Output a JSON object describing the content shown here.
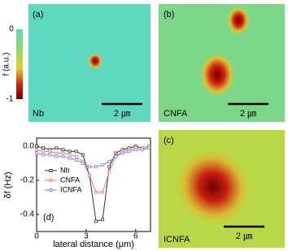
{
  "colorbar": {
    "label": "f (a.u.)",
    "top": "0",
    "bottom": "-1"
  },
  "panels": [
    {
      "tag": "(a)",
      "sample": "Nb",
      "scale": "2 ㎛"
    },
    {
      "tag": "(b)",
      "sample": "CNFA",
      "scale": "2 ㎛"
    },
    {
      "tag": "(c)",
      "sample": "ICNFA",
      "scale": "2 ㎛"
    }
  ],
  "chart_data": {
    "type": "line",
    "panel_tag": "(d)",
    "x_label": "lateral distance (μm)",
    "y_label": "δf (Hz)",
    "x": [
      0,
      0.4,
      0.8,
      1.2,
      1.6,
      2.0,
      2.4,
      2.8,
      3.2,
      3.6,
      4.0,
      4.4,
      4.8,
      5.2,
      5.6,
      6.0,
      6.4,
      6.8
    ],
    "series": [
      {
        "name": "Nb",
        "color": "#333333",
        "values": [
          0.0,
          -0.01,
          -0.02,
          -0.01,
          -0.02,
          -0.03,
          -0.03,
          -0.05,
          -0.17,
          -0.44,
          -0.43,
          -0.12,
          -0.04,
          -0.02,
          -0.01,
          0.0,
          -0.01,
          0.0
        ]
      },
      {
        "name": "CNFA",
        "color": "#f08080",
        "values": [
          -0.02,
          -0.03,
          -0.03,
          -0.04,
          -0.04,
          -0.05,
          -0.06,
          -0.09,
          -0.17,
          -0.27,
          -0.27,
          -0.15,
          -0.06,
          -0.03,
          -0.02,
          -0.01,
          -0.01,
          0.0
        ]
      },
      {
        "name": "ICNFA",
        "color": "#8080f0",
        "values": [
          -0.04,
          -0.05,
          -0.05,
          -0.06,
          -0.06,
          -0.07,
          -0.08,
          -0.1,
          -0.12,
          -0.12,
          -0.11,
          -0.09,
          -0.06,
          -0.04,
          -0.03,
          -0.02,
          -0.02,
          -0.01
        ]
      }
    ],
    "xlim": [
      0,
      6.9
    ],
    "ylim": [
      -0.5,
      0.048
    ],
    "xticks": [
      0,
      3,
      6
    ],
    "yticks": [
      {
        "value": 0,
        "label": "0.0"
      },
      {
        "value": -0.2,
        "label": "-0.2"
      },
      {
        "value": -0.4,
        "label": "-0.4"
      }
    ]
  }
}
